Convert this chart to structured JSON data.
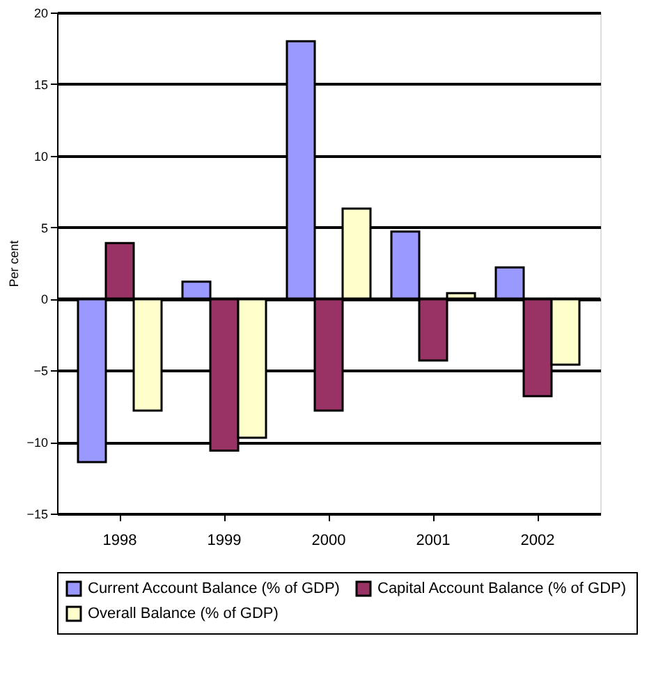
{
  "chart_data": {
    "type": "bar",
    "ylabel": "Per cent",
    "categories": [
      "1998",
      "1999",
      "2000",
      "2001",
      "2002"
    ],
    "series": [
      {
        "name": "Current Account Balance (% of GDP)",
        "color": "#9999ff",
        "values": [
          -11.4,
          1.2,
          18.0,
          4.7,
          2.2
        ]
      },
      {
        "name": "Capital Account Balance (% of GDP)",
        "color": "#993366",
        "values": [
          3.9,
          -10.6,
          -7.8,
          -4.3,
          -6.8
        ]
      },
      {
        "name": "Overall Balance (% of GDP)",
        "color": "#ffffcc",
        "values": [
          -7.8,
          -9.7,
          6.3,
          0.4,
          -4.6
        ]
      }
    ],
    "ylim": [
      -15,
      20
    ],
    "yticks": [
      -15,
      -10,
      -5,
      0,
      5,
      10,
      15,
      20
    ],
    "grid": "y",
    "legend": "bottom"
  }
}
